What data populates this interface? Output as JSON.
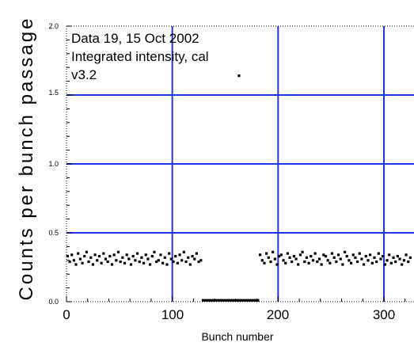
{
  "chart_data": {
    "type": "scatter",
    "xlabel": "Bunch number",
    "ylabel": "Counts per bunch passage",
    "xlim": [
      0,
      325
    ],
    "ylim": [
      0,
      2.0
    ],
    "x_ticks": [
      "0",
      "100",
      "200",
      "300"
    ],
    "y_ticks": [
      "0.0",
      "0.5",
      "1.0",
      "1.5",
      "2.0"
    ],
    "grid": true,
    "grid_color": "#2035e8",
    "annotations": [
      "Data 19, 15 Oct 2002",
      "Integrated intensity, cal",
      "v3.2"
    ],
    "series": [
      {
        "x": [
          1,
          3,
          5,
          7,
          9,
          11,
          13,
          15,
          17,
          19,
          21,
          23,
          25,
          27,
          29,
          31,
          33,
          35,
          37,
          39,
          41,
          43,
          45,
          47,
          49,
          51,
          53,
          55,
          57,
          59,
          61,
          63,
          65,
          67,
          69,
          71,
          73,
          75,
          77,
          79,
          81,
          83,
          85,
          87,
          89,
          91,
          93,
          95,
          97,
          99,
          101,
          103,
          105,
          107,
          109,
          111,
          113,
          115,
          117,
          119,
          121,
          123,
          125,
          127,
          129,
          131,
          133,
          135,
          137,
          139,
          141,
          143,
          145,
          147,
          149,
          151,
          153,
          155,
          157,
          159,
          161,
          163,
          165,
          167,
          169,
          171,
          173,
          175,
          177,
          179,
          181,
          163,
          183,
          185,
          187,
          189,
          191,
          193,
          195,
          197,
          199,
          201,
          203,
          205,
          207,
          209,
          211,
          213,
          215,
          217,
          219,
          221,
          223,
          225,
          227,
          229,
          231,
          233,
          235,
          237,
          239,
          241,
          243,
          245,
          247,
          249,
          251,
          253,
          255,
          257,
          259,
          261,
          263,
          265,
          267,
          269,
          271,
          273,
          275,
          277,
          279,
          281,
          283,
          285,
          287,
          289,
          291,
          293,
          295,
          297,
          299,
          301,
          303,
          305,
          307,
          309,
          311,
          313,
          315,
          317,
          319,
          321,
          323,
          325
        ],
        "y": [
          0.33,
          0.29,
          0.34,
          0.3,
          0.27,
          0.35,
          0.31,
          0.28,
          0.33,
          0.36,
          0.29,
          0.32,
          0.27,
          0.34,
          0.3,
          0.33,
          0.28,
          0.35,
          0.31,
          0.29,
          0.33,
          0.27,
          0.34,
          0.3,
          0.36,
          0.29,
          0.32,
          0.28,
          0.34,
          0.31,
          0.27,
          0.33,
          0.3,
          0.35,
          0.29,
          0.32,
          0.28,
          0.34,
          0.31,
          0.27,
          0.33,
          0.36,
          0.29,
          0.3,
          0.34,
          0.28,
          0.32,
          0.27,
          0.35,
          0.31,
          0.29,
          0.33,
          0.28,
          0.34,
          0.3,
          0.36,
          0.29,
          0.32,
          0.27,
          0.33,
          0.31,
          0.35,
          0.29,
          0.3,
          0.01,
          0.01,
          0.01,
          0.01,
          0.01,
          0.01,
          0.01,
          0.01,
          0.01,
          0.01,
          0.01,
          0.01,
          0.01,
          0.01,
          0.01,
          0.01,
          0.01,
          0.01,
          0.01,
          0.01,
          0.01,
          0.01,
          0.01,
          0.01,
          0.01,
          0.01,
          0.01,
          1.64,
          0.34,
          0.3,
          0.28,
          0.35,
          0.32,
          0.29,
          0.36,
          0.31,
          0.27,
          0.33,
          0.34,
          0.3,
          0.28,
          0.35,
          0.32,
          0.29,
          0.33,
          0.31,
          0.27,
          0.34,
          0.36,
          0.29,
          0.32,
          0.28,
          0.33,
          0.3,
          0.35,
          0.29,
          0.31,
          0.27,
          0.34,
          0.33,
          0.3,
          0.28,
          0.35,
          0.32,
          0.29,
          0.34,
          0.31,
          0.27,
          0.36,
          0.33,
          0.3,
          0.28,
          0.34,
          0.32,
          0.29,
          0.35,
          0.31,
          0.27,
          0.33,
          0.3,
          0.34,
          0.28,
          0.32,
          0.29,
          0.35,
          0.31,
          0.33,
          0.27,
          0.3,
          0.34,
          0.28,
          0.32,
          0.29,
          0.33,
          0.31,
          0.27,
          0.3,
          0.34,
          0.29,
          0.32
        ]
      }
    ]
  }
}
